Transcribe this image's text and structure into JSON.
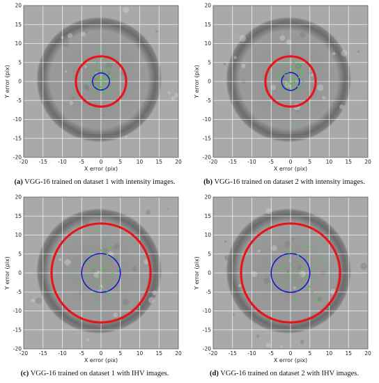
{
  "colors": {
    "outer_circle": "#e8141b",
    "inner_circle": "#1a1acc",
    "points": "#33dd33",
    "grid": "#ffffff",
    "background": "#a9a9a9"
  },
  "chart_data": [
    {
      "type": "scatter",
      "label": "(a)",
      "caption": "VGG-16 trained on dataset 1 with intensity images.",
      "xlabel": "X error (pix)",
      "ylabel": "Y error (pix)",
      "xlim": [
        -20,
        20
      ],
      "ylim": [
        -20,
        20
      ],
      "xticks": [
        -20,
        -15,
        -10,
        -5,
        0,
        5,
        10,
        15,
        20
      ],
      "yticks": [
        20,
        15,
        10,
        5,
        0,
        -5,
        -10,
        -15,
        -20
      ],
      "grid": true,
      "circles": [
        {
          "role": "outer",
          "cx": 0,
          "cy": 0,
          "r": 6.5
        },
        {
          "role": "inner",
          "cx": 0,
          "cy": 0,
          "r": 2.2
        }
      ],
      "points": [
        [
          -0.3,
          8.7
        ],
        [
          0.4,
          6.2
        ],
        [
          -1.0,
          5.0
        ],
        [
          1.2,
          4.6
        ],
        [
          -0.5,
          3.9
        ],
        [
          2.0,
          3.6
        ],
        [
          -1.9,
          3.1
        ],
        [
          0.8,
          3.0
        ],
        [
          -0.2,
          2.6
        ],
        [
          1.6,
          2.2
        ],
        [
          -2.2,
          1.9
        ],
        [
          0.3,
          1.7
        ],
        [
          2.3,
          1.4
        ],
        [
          -1.3,
          1.1
        ],
        [
          0.9,
          0.9
        ],
        [
          -0.6,
          0.6
        ],
        [
          1.9,
          0.3
        ],
        [
          -2.6,
          0.1
        ],
        [
          0.5,
          -0.2
        ],
        [
          -0.9,
          -0.5
        ],
        [
          1.3,
          -0.8
        ],
        [
          -1.6,
          -1.1
        ],
        [
          0.1,
          -1.4
        ],
        [
          2.7,
          -1.6
        ],
        [
          -0.4,
          -1.9
        ],
        [
          1.0,
          -2.3
        ],
        [
          -2.0,
          -2.5
        ],
        [
          0.6,
          -2.8
        ],
        [
          -1.1,
          -3.3
        ],
        [
          3.4,
          0.8
        ],
        [
          -3.3,
          -0.6
        ],
        [
          2.5,
          -3.1
        ],
        [
          0.0,
          0.3
        ]
      ]
    },
    {
      "type": "scatter",
      "label": "(b)",
      "caption": "VGG-16 trained on dataset 2 with intensity images.",
      "xlabel": "X error (pix)",
      "ylabel": "Y error (pix)",
      "xlim": [
        -20,
        20
      ],
      "ylim": [
        -20,
        20
      ],
      "xticks": [
        -20,
        -15,
        -10,
        -5,
        0,
        5,
        10,
        15,
        20
      ],
      "yticks": [
        20,
        15,
        10,
        5,
        0,
        -5,
        -10,
        -15,
        -20
      ],
      "grid": true,
      "circles": [
        {
          "role": "outer",
          "cx": 0,
          "cy": 0,
          "r": 6.5
        },
        {
          "role": "inner",
          "cx": 0,
          "cy": 0,
          "r": 2.3
        }
      ],
      "points": [
        [
          -0.5,
          5.6
        ],
        [
          0.8,
          5.1
        ],
        [
          -1.6,
          4.5
        ],
        [
          1.9,
          4.2
        ],
        [
          0.2,
          3.8
        ],
        [
          2.5,
          3.3
        ],
        [
          -2.3,
          3.0
        ],
        [
          1.2,
          2.7
        ],
        [
          -0.8,
          2.4
        ],
        [
          2.9,
          2.0
        ],
        [
          -1.4,
          1.7
        ],
        [
          0.5,
          1.4
        ],
        [
          2.2,
          1.1
        ],
        [
          -2.9,
          0.9
        ],
        [
          1.5,
          0.5
        ],
        [
          -0.3,
          0.2
        ],
        [
          3.3,
          -0.1
        ],
        [
          -1.9,
          -0.4
        ],
        [
          0.7,
          -0.7
        ],
        [
          -0.9,
          -1.0
        ],
        [
          2.0,
          -1.3
        ],
        [
          -2.4,
          -1.6
        ],
        [
          0.3,
          -1.9
        ],
        [
          1.6,
          -2.3
        ],
        [
          -1.2,
          -2.6
        ],
        [
          3.0,
          2.8
        ],
        [
          -3.5,
          1.5
        ],
        [
          0.9,
          -11.4
        ],
        [
          2.6,
          4.6
        ],
        [
          1.0,
          0.1
        ],
        [
          -0.1,
          -0.6
        ]
      ]
    },
    {
      "type": "scatter",
      "label": "(c)",
      "caption": "VGG-16 trained on dataset 1 with IHV images.",
      "xlabel": "X error (pix)",
      "ylabel": "Y error (pix)",
      "xlim": [
        -20,
        20
      ],
      "ylim": [
        -20,
        20
      ],
      "xticks": [
        -20,
        -15,
        -10,
        -5,
        0,
        5,
        10,
        15,
        20
      ],
      "yticks": [
        20,
        15,
        10,
        5,
        0,
        -5,
        -10,
        -15,
        -20
      ],
      "grid": true,
      "circles": [
        {
          "role": "outer",
          "cx": 0,
          "cy": 0,
          "r": 12.8
        },
        {
          "role": "inner",
          "cx": 0,
          "cy": 0,
          "r": 5.0
        }
      ],
      "points": [
        [
          -0.6,
          11.2
        ],
        [
          0.9,
          9.6
        ],
        [
          -1.8,
          7.4
        ],
        [
          2.3,
          6.8
        ],
        [
          0.1,
          6.0
        ],
        [
          -2.9,
          5.3
        ],
        [
          1.6,
          4.8
        ],
        [
          3.7,
          4.2
        ],
        [
          -0.9,
          3.9
        ],
        [
          0.6,
          3.3
        ],
        [
          -3.8,
          2.7
        ],
        [
          2.4,
          2.4
        ],
        [
          -1.4,
          1.9
        ],
        [
          1.1,
          1.5
        ],
        [
          4.6,
          1.0
        ],
        [
          -2.3,
          0.7
        ],
        [
          0.3,
          0.3
        ],
        [
          2.9,
          -0.2
        ],
        [
          -0.6,
          -0.6
        ],
        [
          -3.2,
          -1.1
        ],
        [
          1.8,
          -1.5
        ],
        [
          -1.2,
          -2.0
        ],
        [
          0.7,
          -2.5
        ],
        [
          3.4,
          -2.9
        ],
        [
          -2.6,
          -3.4
        ],
        [
          -0.2,
          -3.9
        ],
        [
          1.5,
          -4.6
        ],
        [
          -1.8,
          -5.3
        ],
        [
          2.1,
          -6.4
        ],
        [
          -0.9,
          -7.8
        ],
        [
          -7.9,
          0.8
        ],
        [
          8.4,
          3.1
        ],
        [
          17.2,
          16.8
        ],
        [
          -5.4,
          -2.6
        ],
        [
          5.6,
          -4.1
        ],
        [
          0.4,
          1.2
        ]
      ]
    },
    {
      "type": "scatter",
      "label": "(d)",
      "caption": "VGG-16 trained on dataset 2 with IHV images.",
      "xlabel": "X error (pix)",
      "ylabel": "Y error (pix)",
      "xlim": [
        -20,
        20
      ],
      "ylim": [
        -20,
        20
      ],
      "xticks": [
        -20,
        -15,
        -10,
        -5,
        0,
        5,
        10,
        15,
        20
      ],
      "yticks": [
        20,
        15,
        10,
        5,
        0,
        -5,
        -10,
        -15,
        -20
      ],
      "grid": true,
      "circles": [
        {
          "role": "outer",
          "cx": 0,
          "cy": 0,
          "r": 12.8
        },
        {
          "role": "inner",
          "cx": 0,
          "cy": 0,
          "r": 5.0
        }
      ],
      "points": [
        [
          0.6,
          6.2
        ],
        [
          -0.4,
          5.3
        ],
        [
          1.9,
          4.6
        ],
        [
          3.6,
          7.2
        ],
        [
          5.2,
          6.8
        ],
        [
          6.9,
          5.9
        ],
        [
          7.8,
          4.1
        ],
        [
          4.4,
          3.5
        ],
        [
          2.6,
          2.9
        ],
        [
          0.2,
          2.3
        ],
        [
          -1.5,
          1.7
        ],
        [
          3.2,
          1.2
        ],
        [
          5.7,
          0.8
        ],
        [
          1.3,
          0.4
        ],
        [
          -0.7,
          -0.1
        ],
        [
          2.7,
          -0.6
        ],
        [
          4.2,
          -1.1
        ],
        [
          6.1,
          -1.6
        ],
        [
          0.9,
          -2.2
        ],
        [
          -1.1,
          -2.7
        ],
        [
          3.0,
          -3.2
        ],
        [
          4.9,
          -3.6
        ],
        [
          2.0,
          -4.3
        ],
        [
          5.6,
          -5.0
        ],
        [
          7.3,
          -6.3
        ],
        [
          6.4,
          -7.4
        ],
        [
          1.4,
          -7.1
        ],
        [
          -2.6,
          0.9
        ],
        [
          8.8,
          2.5
        ],
        [
          9.6,
          0.3
        ],
        [
          3.9,
          8.6
        ],
        [
          6.8,
          2.7
        ]
      ]
    }
  ]
}
